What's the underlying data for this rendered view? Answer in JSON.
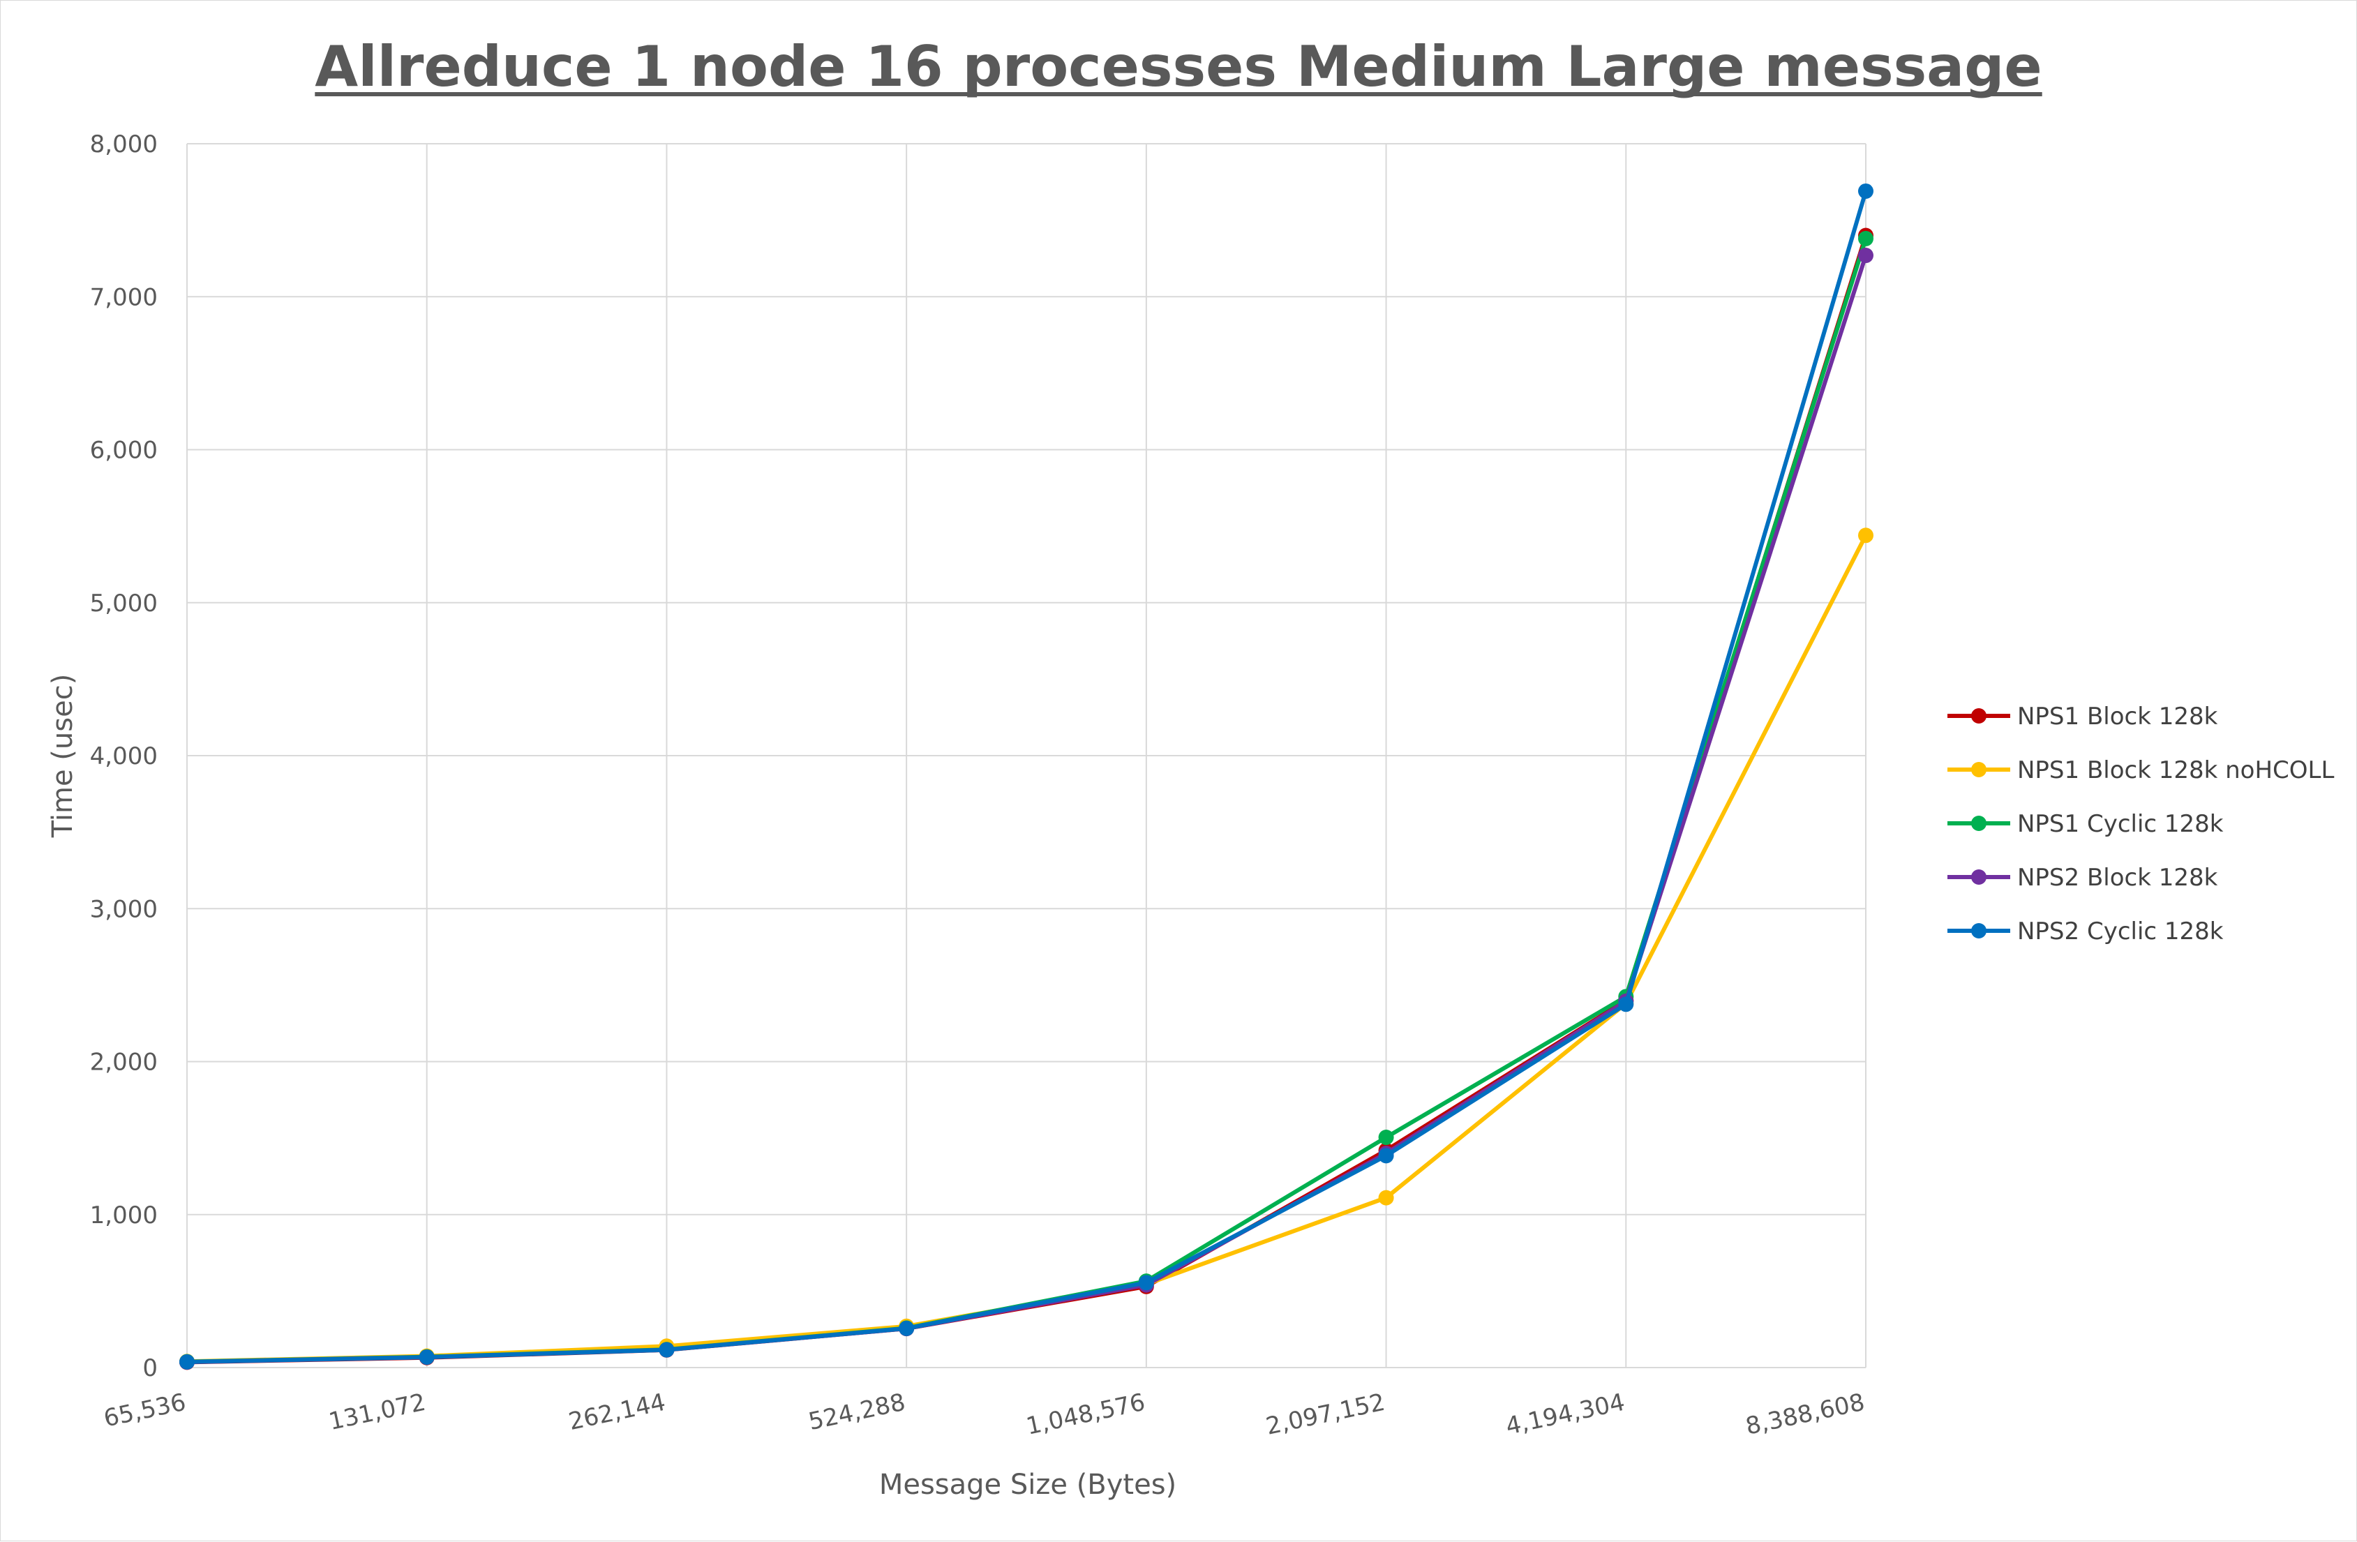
{
  "chart_data": {
    "type": "line",
    "title": "Allreduce 1 node 16 processes Medium Large message",
    "xlabel": "Message Size (Bytes)",
    "ylabel": "Time (usec)",
    "categories": [
      "65,536",
      "131,072",
      "262,144",
      "524,288",
      "1,048,576",
      "2,097,152",
      "4,194,304",
      "8,388,608"
    ],
    "ylim": [
      0,
      8000
    ],
    "yticks": [
      0,
      1000,
      2000,
      3000,
      4000,
      5000,
      6000,
      7000,
      8000
    ],
    "ytick_labels": [
      "0",
      "1,000",
      "2,000",
      "3,000",
      "4,000",
      "5,000",
      "6,000",
      "7,000",
      "8,000"
    ],
    "grid": true,
    "legend_position": "right",
    "series": [
      {
        "name": "NPS1 Block 128k",
        "color": "#C00000",
        "values": [
          35,
          65,
          115,
          255,
          530,
          1420,
          2400,
          7400
        ]
      },
      {
        "name": "NPS1 Block 128k noHCOLL",
        "color": "#FFC000",
        "values": [
          40,
          75,
          140,
          270,
          545,
          1110,
          2380,
          5440
        ]
      },
      {
        "name": "NPS1 Cyclic 128k",
        "color": "#00B050",
        "values": [
          38,
          70,
          118,
          258,
          565,
          1505,
          2425,
          7380
        ]
      },
      {
        "name": "NPS2 Block 128k",
        "color": "#7030A0",
        "values": [
          36,
          68,
          116,
          255,
          540,
          1400,
          2395,
          7270
        ]
      },
      {
        "name": "NPS2 Cyclic 128k",
        "color": "#0070C0",
        "values": [
          37,
          68,
          116,
          256,
          555,
          1385,
          2375,
          7690
        ]
      }
    ]
  }
}
